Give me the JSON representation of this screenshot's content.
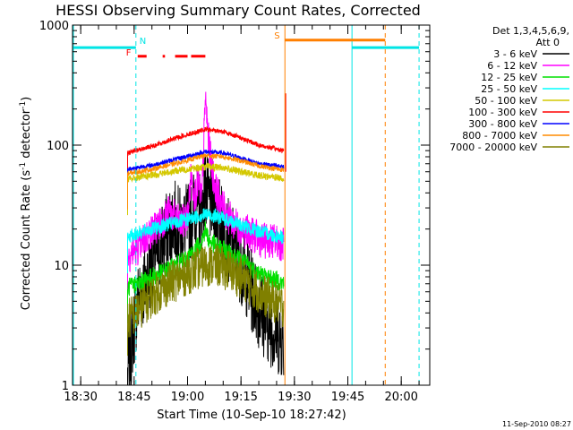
{
  "chart_data": {
    "type": "line",
    "title": "HESSI Observing Summary Count Rates, Corrected",
    "xlabel": "Start Time (10-Sep-10 18:27:42)",
    "ylabel": "Corrected Count Rate (s⁻¹ detector⁻¹)",
    "ylabel_main": "Corrected Count Rate (s",
    "ylabel_sup1": "-1",
    "ylabel_mid": " detector",
    "ylabel_sup2": "-1",
    "ylabel_end": ")",
    "y_scale": "log",
    "xlim": [
      "18:27:42",
      "20:08:00"
    ],
    "ylim": [
      1,
      1000
    ],
    "x_ticks": [
      "18:30",
      "18:45",
      "19:00",
      "19:15",
      "19:30",
      "19:45",
      "20:00"
    ],
    "y_ticks": [
      "1",
      "10",
      "100",
      "1000"
    ],
    "timestamp": "11-Sep-2010 08:27",
    "legend_header": [
      "Det 1,3,4,5,6,9,",
      "Att 0"
    ],
    "legend_position": "right",
    "flags": {
      "N": {
        "label": "N",
        "color": "#00e5e5",
        "level": 650,
        "segments": [
          [
            "18:27:42",
            "18:45:30"
          ],
          [
            "19:46:10",
            "20:05:00"
          ]
        ],
        "boundaries": [
          "18:45:30",
          "19:46:10",
          "20:05:00"
        ]
      },
      "S": {
        "label": "S",
        "color": "#ff7f00",
        "level": 750,
        "segments": [
          [
            "19:27:20",
            "19:55:30"
          ]
        ],
        "boundaries": [
          "19:27:20",
          "19:55:30"
        ]
      },
      "F": {
        "label": "F",
        "color": "#ff0000",
        "level": 550,
        "segments": [
          [
            "18:46:00",
            "18:48:30"
          ],
          [
            "18:53:00",
            "18:53:40"
          ],
          [
            "18:56:30",
            "19:00:00"
          ],
          [
            "19:01:00",
            "19:05:00"
          ]
        ]
      }
    },
    "series": [
      {
        "name": "3 - 6 keV",
        "color": "#000000",
        "noise": 0.35,
        "x": [
          "18:43:10",
          "18:44:30",
          "18:46:00",
          "18:48:00",
          "18:50:00",
          "18:52:00",
          "18:54:00",
          "18:56:00",
          "18:58:00",
          "19:00:00",
          "19:02:00",
          "19:04:00",
          "19:05:00",
          "19:06:00",
          "19:07:00",
          "19:08:00",
          "19:10:00",
          "19:12:00",
          "19:14:00",
          "19:16:00",
          "19:18:00",
          "19:20:00",
          "19:22:00",
          "19:24:00",
          "19:26:00",
          "19:27:00"
        ],
        "values": [
          1.2,
          2.5,
          5,
          7,
          10,
          14,
          18,
          24,
          20,
          22,
          30,
          28,
          45,
          32,
          35,
          30,
          20,
          15,
          12,
          9,
          6,
          4.5,
          3.5,
          3,
          2.5,
          2.5
        ]
      },
      {
        "name": "6 - 12 keV",
        "color": "#ff00ff",
        "noise": 0.15,
        "x": [
          "18:43:10",
          "18:46:00",
          "18:49:00",
          "18:52:00",
          "18:55:00",
          "18:58:00",
          "19:00:00",
          "19:01:00",
          "19:02:00",
          "19:03:00",
          "19:04:00",
          "19:05:00",
          "19:06:00",
          "19:07:00",
          "19:08:00",
          "19:10:00",
          "19:12:00",
          "19:15:00",
          "19:18:00",
          "19:21:00",
          "19:24:00",
          "19:27:00"
        ],
        "values": [
          12,
          14,
          18,
          22,
          28,
          22,
          25,
          55,
          38,
          50,
          35,
          250,
          100,
          60,
          42,
          30,
          24,
          20,
          18,
          16,
          16,
          15
        ]
      },
      {
        "name": "12 - 25 keV",
        "color": "#00e000",
        "noise": 0.08,
        "x": [
          "18:43:10",
          "18:46:00",
          "18:50:00",
          "18:54:00",
          "18:58:00",
          "19:00:00",
          "19:02:00",
          "19:04:00",
          "19:05:00",
          "19:06:00",
          "19:08:00",
          "19:10:00",
          "19:13:00",
          "19:16:00",
          "19:19:00",
          "19:22:00",
          "19:25:00",
          "19:27:00"
        ],
        "values": [
          6.5,
          7,
          8,
          9,
          10.5,
          11.5,
          13,
          16,
          20,
          16,
          14.5,
          13.5,
          12,
          10.5,
          9,
          8,
          7.5,
          7
        ]
      },
      {
        "name": "25 - 50 keV",
        "color": "#00ffff",
        "noise": 0.06,
        "x": [
          "18:43:10",
          "18:46:00",
          "18:50:00",
          "18:55:00",
          "19:00:00",
          "19:03:00",
          "19:05:00",
          "19:07:00",
          "19:10:00",
          "19:14:00",
          "19:18:00",
          "19:22:00",
          "19:25:00",
          "19:27:00"
        ],
        "values": [
          17,
          18.5,
          20,
          22,
          24,
          25.5,
          26.5,
          26,
          24.5,
          22,
          20,
          18.5,
          17.5,
          17
        ]
      },
      {
        "name": "50 - 100 keV",
        "color": "#d4c800",
        "noise": 0.03,
        "x": [
          "18:43:10",
          "18:50:00",
          "18:58:00",
          "19:05:00",
          "19:10:00",
          "19:15:00",
          "19:20:00",
          "19:27:00"
        ],
        "values": [
          52,
          56,
          62,
          66,
          65,
          60,
          56,
          53
        ]
      },
      {
        "name": "100 - 300 keV",
        "color": "#ff0000",
        "noise": 0.02,
        "x": [
          "18:43:10",
          "18:50:00",
          "18:58:00",
          "19:05:00",
          "19:10:00",
          "19:15:00",
          "19:20:00",
          "19:27:00"
        ],
        "values": [
          86,
          98,
          118,
          135,
          130,
          115,
          100,
          90
        ]
      },
      {
        "name": "300 - 800 keV",
        "color": "#0000ff",
        "noise": 0.02,
        "x": [
          "18:43:10",
          "18:50:00",
          "18:58:00",
          "19:05:00",
          "19:10:00",
          "19:15:00",
          "19:20:00",
          "19:27:00"
        ],
        "values": [
          63,
          68,
          78,
          88,
          86,
          78,
          70,
          66
        ]
      },
      {
        "name": "800 - 7000 keV",
        "color": "#ff8c00",
        "noise": 0.02,
        "x": [
          "18:43:10",
          "18:50:00",
          "18:58:00",
          "19:05:00",
          "19:10:00",
          "19:15:00",
          "19:20:00",
          "19:27:00"
        ],
        "values": [
          58,
          63,
          72,
          82,
          80,
          74,
          67,
          62
        ]
      },
      {
        "name": "7000 - 20000 keV",
        "color": "#808000",
        "noise": 0.18,
        "x": [
          "18:43:10",
          "18:46:00",
          "18:50:00",
          "18:55:00",
          "19:00:00",
          "19:05:00",
          "19:08:00",
          "19:12:00",
          "19:16:00",
          "19:20:00",
          "19:24:00",
          "19:27:00"
        ],
        "values": [
          3.5,
          4.2,
          5.5,
          7,
          8.5,
          10,
          10,
          9,
          7.5,
          6,
          5,
          4.5
        ]
      }
    ]
  }
}
